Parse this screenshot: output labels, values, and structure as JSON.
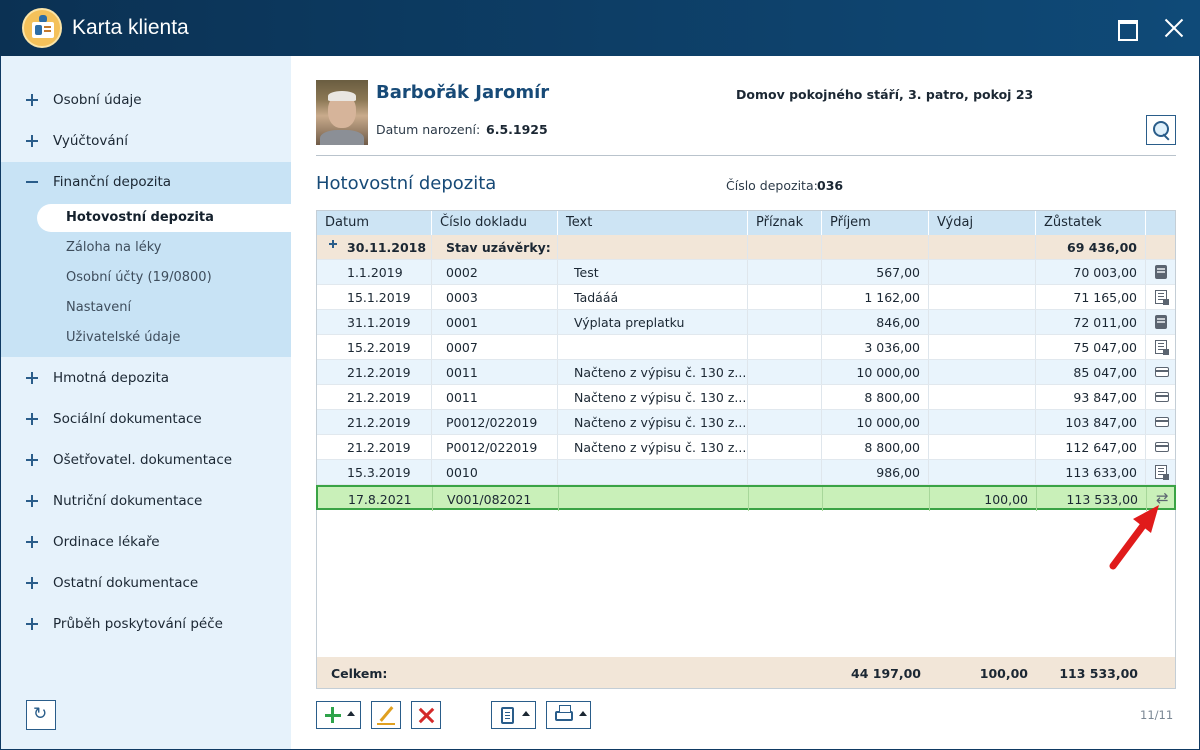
{
  "window": {
    "title": "Karta klienta"
  },
  "sidebar": {
    "items_top": [
      {
        "label": "Osobní údaje"
      },
      {
        "label": "Vyúčtování"
      }
    ],
    "expanded": {
      "label": "Finanční depozita",
      "children": [
        {
          "label": "Hotovostní depozita",
          "active": true
        },
        {
          "label": "Záloha na léky"
        },
        {
          "label": "Osobní účty (19/0800)"
        },
        {
          "label": "Nastavení"
        },
        {
          "label": "Uživatelské údaje"
        }
      ]
    },
    "items_bottom": [
      {
        "label": "Hmotná depozita"
      },
      {
        "label": "Sociální dokumentace"
      },
      {
        "label": "Ošetřovatel. dokumentace"
      },
      {
        "label": "Nutriční dokumentace"
      },
      {
        "label": "Ordinace lékaře"
      },
      {
        "label": "Ostatní dokumentace"
      },
      {
        "label": "Průběh poskytování péče"
      }
    ]
  },
  "client": {
    "name": "Barbořák Jaromír",
    "birth_label": "Datum narození:",
    "birth_date": "6.5.1925",
    "location": "Domov pokojného stáří, 3. patro, pokoj 23"
  },
  "section": {
    "title": "Hotovostní depozita",
    "deposit_label": "Číslo depozita:",
    "deposit_number": "036"
  },
  "table": {
    "columns": [
      "Datum",
      "Číslo dokladu",
      "Text",
      "Příznak",
      "Příjem",
      "Výdaj",
      "Zůstatek"
    ],
    "closing": {
      "date": "30.11.2018",
      "label": "Stav uzávěrky:",
      "balance": "69 436,00"
    },
    "rows": [
      {
        "date": "1.1.2019",
        "doc": "0002",
        "text": "Test",
        "flag": "",
        "income": "567,00",
        "expense": "",
        "balance": "70 003,00",
        "icon": "book-icon"
      },
      {
        "date": "15.1.2019",
        "doc": "0003",
        "text": "Tadááá",
        "flag": "",
        "income": "1 162,00",
        "expense": "",
        "balance": "71 165,00",
        "icon": "receipt-icon"
      },
      {
        "date": "31.1.2019",
        "doc": "0001",
        "text": "Výplata preplatku",
        "flag": "",
        "income": "846,00",
        "expense": "",
        "balance": "72 011,00",
        "icon": "book-icon"
      },
      {
        "date": "15.2.2019",
        "doc": "0007",
        "text": "",
        "flag": "",
        "income": "3 036,00",
        "expense": "",
        "balance": "75 047,00",
        "icon": "receipt-icon"
      },
      {
        "date": "21.2.2019",
        "doc": "0011",
        "text": "Načteno z výpisu č. 130 z...",
        "flag": "",
        "income": "10 000,00",
        "expense": "",
        "balance": "85 047,00",
        "icon": "card-icon"
      },
      {
        "date": "21.2.2019",
        "doc": "0011",
        "text": "Načteno z výpisu č. 130 z...",
        "flag": "",
        "income": "8 800,00",
        "expense": "",
        "balance": "93 847,00",
        "icon": "card-icon"
      },
      {
        "date": "21.2.2019",
        "doc": "P0012/022019",
        "text": "Načteno z výpisu č. 130 z...",
        "flag": "",
        "income": "10 000,00",
        "expense": "",
        "balance": "103 847,00",
        "icon": "card-icon"
      },
      {
        "date": "21.2.2019",
        "doc": "P0012/022019",
        "text": "Načteno z výpisu č. 130 z...",
        "flag": "",
        "income": "8 800,00",
        "expense": "",
        "balance": "112 647,00",
        "icon": "card-icon"
      },
      {
        "date": "15.3.2019",
        "doc": "0010",
        "text": "",
        "flag": "",
        "income": "986,00",
        "expense": "",
        "balance": "113 633,00",
        "icon": "receipt-icon"
      },
      {
        "date": "17.8.2021",
        "doc": "V001/082021",
        "text": "",
        "flag": "",
        "income": "",
        "expense": "100,00",
        "balance": "113 533,00",
        "icon": "transfer-icon",
        "selected": true
      }
    ],
    "footer": {
      "label": "Celkem:",
      "income": "44 197,00",
      "expense": "100,00",
      "balance": "113 533,00"
    }
  },
  "pager": {
    "text": "11/11"
  },
  "icons": {
    "transfer_glyph": "⇄",
    "refresh_glyph": "↻"
  },
  "colors": {
    "accent": "#174a77",
    "selected_row": "#c9f0b9",
    "selected_border": "#3aa345",
    "total_row": "#f2e6d8",
    "annotation_arrow": "#e01b1b"
  }
}
